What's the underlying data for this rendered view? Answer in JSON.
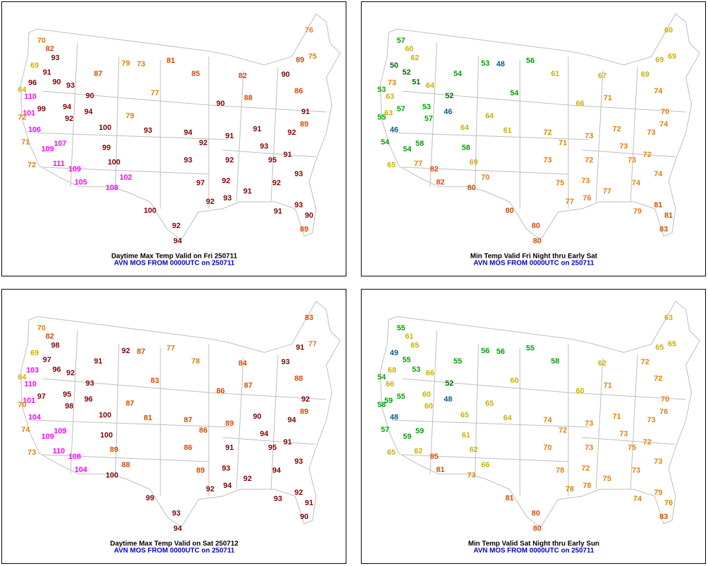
{
  "panels": [
    {
      "title": "Daytime Max Temp Valid on Fri 250711",
      "subtitle": "AVN MOS FROM 0000UTC on 250711",
      "values": [
        70,
        82,
        93,
        69,
        91,
        90,
        96,
        64,
        110,
        93,
        101,
        99,
        94,
        72,
        106,
        92,
        71,
        109,
        107,
        72,
        111,
        109,
        105,
        94,
        87,
        79,
        73,
        90,
        100,
        99,
        100,
        108,
        102,
        100,
        92,
        94,
        93,
        79,
        77,
        81,
        85,
        94,
        92,
        93,
        97,
        92,
        93,
        92,
        92,
        91,
        90,
        82,
        88,
        91,
        93,
        95,
        92,
        91,
        91,
        93,
        93,
        91,
        92,
        90,
        86,
        91,
        76,
        75,
        89,
        89,
        89,
        90
      ]
    },
    {
      "title": "Min Temp Valid Fri Night thru Early Sat",
      "subtitle": "AVN MOS FROM 0000UTC on 250711",
      "values": [
        57,
        60,
        62,
        50,
        52,
        51,
        73,
        53,
        63,
        64,
        63,
        57,
        53,
        55,
        46,
        57,
        54,
        54,
        58,
        65,
        77,
        82,
        82,
        46,
        54,
        53,
        48,
        52,
        64,
        58,
        69,
        80,
        70,
        80,
        80,
        80,
        61,
        64,
        54,
        56,
        61,
        72,
        71,
        73,
        75,
        77,
        76,
        73,
        72,
        73,
        66,
        67,
        71,
        72,
        73,
        73,
        74,
        77,
        79,
        81,
        74,
        72,
        73,
        69,
        74,
        70,
        60,
        69,
        69,
        74,
        83,
        81
      ]
    },
    {
      "title": "Daytime Max Temp Valid on Sat 250712",
      "subtitle": "AVN MOS FROM 0000UTC on 250711",
      "values": [
        70,
        82,
        98,
        69,
        97,
        96,
        103,
        64,
        110,
        92,
        101,
        97,
        95,
        70,
        104,
        98,
        74,
        109,
        109,
        73,
        110,
        108,
        104,
        96,
        91,
        92,
        87,
        93,
        100,
        100,
        89,
        100,
        88,
        99,
        93,
        94,
        81,
        87,
        83,
        77,
        78,
        87,
        86,
        86,
        89,
        92,
        94,
        93,
        91,
        89,
        86,
        84,
        87,
        90,
        94,
        95,
        94,
        92,
        93,
        92,
        93,
        91,
        94,
        93,
        88,
        92,
        83,
        77,
        91,
        89,
        90,
        91
      ]
    },
    {
      "title": "Min Temp Valid Sat Night thru Early Sun",
      "subtitle": "AVN MOS FROM 0000UTC on 250711",
      "values": [
        55,
        61,
        65,
        49,
        55,
        53,
        68,
        54,
        66,
        66,
        59,
        55,
        60,
        58,
        48,
        60,
        57,
        59,
        59,
        65,
        62,
        85,
        81,
        48,
        55,
        56,
        56,
        52,
        65,
        61,
        62,
        73,
        66,
        81,
        80,
        80,
        64,
        65,
        60,
        55,
        58,
        74,
        72,
        70,
        78,
        78,
        78,
        72,
        73,
        73,
        60,
        62,
        71,
        71,
        73,
        75,
        73,
        75,
        74,
        79,
        73,
        72,
        73,
        72,
        72,
        70,
        63,
        65,
        65,
        76,
        83,
        76
      ]
    }
  ]
}
